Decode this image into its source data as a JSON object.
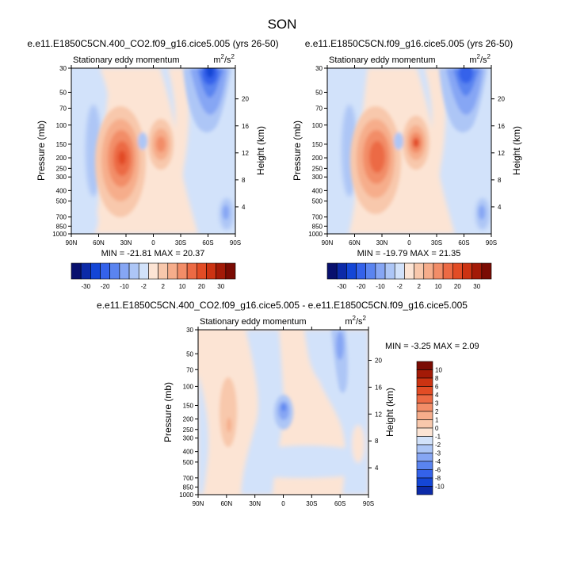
{
  "page_title": "SON",
  "colors": {
    "background": "#ffffff",
    "axis": "#000000",
    "palette_neg": [
      "#08106e",
      "#0c2aa8",
      "#1446d6",
      "#3462ea",
      "#5a84f0",
      "#86a6f4",
      "#adc6f6",
      "#d2e2fa"
    ],
    "palette_pos": [
      "#fce4d4",
      "#f8c8ac",
      "#f6ad8b",
      "#f28d68",
      "#ec6a44",
      "#e24c25",
      "#cc3312",
      "#a31a07",
      "#7a0b03"
    ]
  },
  "chart_data": [
    {
      "id": "panel1",
      "type": "contour",
      "title": "e.e11.E1850C5CN.400_CO2.f09_g16.cice5.005 (yrs 26-50)",
      "subtitle_left": "Stationary eddy momentum",
      "units": "m²/s²",
      "units_base": "m",
      "units_num": "2",
      "units_mid": "/s",
      "units_den": "2",
      "ylabel": "Pressure (mb)",
      "ylabel_right": "Height (km)",
      "x_ticks": [
        "90N",
        "60N",
        "30N",
        "0",
        "30S",
        "60S",
        "90S"
      ],
      "x_range": [
        90,
        -90
      ],
      "y_ticks_pressure": [
        "30",
        "50",
        "70",
        "100",
        "150",
        "200",
        "250",
        "300",
        "400",
        "500",
        "700",
        "850",
        "1000"
      ],
      "y_ticks_pressure_values": [
        30,
        50,
        70,
        100,
        150,
        200,
        250,
        300,
        400,
        500,
        700,
        850,
        1000
      ],
      "y_ticks_height": [
        "20",
        "16",
        "12",
        "8",
        "4"
      ],
      "y_ticks_height_values": [
        20,
        16,
        12,
        8,
        4
      ],
      "y_range": [
        1000,
        30
      ],
      "min": -21.81,
      "max": 20.37,
      "stats_label": "MIN = -21.81  MAX = 20.37",
      "features": [
        {
          "lat": 31,
          "p": 210,
          "value": 20.37
        },
        {
          "lat": -3,
          "p": 150,
          "value": 17
        },
        {
          "lat": 14,
          "p": 150,
          "value": -5
        },
        {
          "lat": 60,
          "p": 200,
          "value": -4
        },
        {
          "lat": -66,
          "p": 50,
          "value": -21.81
        },
        {
          "lat": -83,
          "p": 700,
          "value": -6
        }
      ]
    },
    {
      "id": "panel2",
      "type": "contour",
      "title": "e.e11.E1850C5CN.f09_g16.cice5.005 (yrs 26-50)",
      "subtitle_left": "Stationary eddy momentum",
      "units": "m²/s²",
      "units_base": "m",
      "units_num": "2",
      "units_mid": "/s",
      "units_den": "2",
      "ylabel": "Pressure (mb)",
      "ylabel_right": "Height (km)",
      "x_ticks": [
        "90N",
        "60N",
        "30N",
        "0",
        "30S",
        "60S",
        "90S"
      ],
      "x_range": [
        90,
        -90
      ],
      "y_ticks_pressure": [
        "30",
        "50",
        "70",
        "100",
        "150",
        "200",
        "250",
        "300",
        "400",
        "500",
        "700",
        "850",
        "1000"
      ],
      "y_ticks_pressure_values": [
        30,
        50,
        70,
        100,
        150,
        200,
        250,
        300,
        400,
        500,
        700,
        850,
        1000
      ],
      "y_ticks_height": [
        "20",
        "16",
        "12",
        "8",
        "4"
      ],
      "y_ticks_height_values": [
        20,
        16,
        12,
        8,
        4
      ],
      "y_range": [
        1000,
        30
      ],
      "min": -19.79,
      "max": 21.35,
      "stats_label": "MIN = -19.79  MAX = 21.35",
      "features": [
        {
          "lat": 28,
          "p": 200,
          "value": 19
        },
        {
          "lat": -2,
          "p": 150,
          "value": 21.35
        },
        {
          "lat": 14,
          "p": 150,
          "value": -5
        },
        {
          "lat": 60,
          "p": 200,
          "value": -4
        },
        {
          "lat": -64,
          "p": 50,
          "value": -19.79
        },
        {
          "lat": -83,
          "p": 700,
          "value": -6
        }
      ]
    },
    {
      "id": "panel3",
      "type": "contour",
      "title": "e.e11.E1850C5CN.400_CO2.f09_g16.cice5.005 - e.e11.E1850C5CN.f09_g16.cice5.005",
      "subtitle_left": "Stationary eddy momentum",
      "units": "m²/s²",
      "units_base": "m",
      "units_num": "2",
      "units_mid": "/s",
      "units_den": "2",
      "ylabel": "Pressure (mb)",
      "ylabel_right": "Height (km)",
      "x_ticks": [
        "90N",
        "60N",
        "30N",
        "0",
        "30S",
        "60S",
        "90S"
      ],
      "x_range": [
        90,
        -90
      ],
      "y_ticks_pressure": [
        "30",
        "50",
        "70",
        "100",
        "150",
        "200",
        "250",
        "300",
        "400",
        "500",
        "700",
        "850",
        "1000"
      ],
      "y_ticks_pressure_values": [
        30,
        50,
        70,
        100,
        150,
        200,
        250,
        300,
        400,
        500,
        700,
        850,
        1000
      ],
      "y_ticks_height": [
        "20",
        "16",
        "12",
        "8",
        "4"
      ],
      "y_ticks_height_values": [
        20,
        16,
        12,
        8,
        4
      ],
      "y_range": [
        1000,
        30
      ],
      "min": -3.25,
      "max": 2.09,
      "stats_label": "MIN = -3.25  MAX =  2.09",
      "features": [
        {
          "lat": -2,
          "p": 150,
          "value": -3.25
        },
        {
          "lat": 62,
          "p": 200,
          "value": 2.09
        },
        {
          "lat": -63,
          "p": 45,
          "value": -2
        }
      ]
    }
  ],
  "colorbars": [
    {
      "id": "cb1",
      "orientation": "horizontal",
      "labels": [
        "-30",
        "-20",
        "-10",
        "-2",
        "2",
        "10",
        "20",
        "30"
      ]
    },
    {
      "id": "cb2",
      "orientation": "horizontal",
      "labels": [
        "-30",
        "-20",
        "-10",
        "-2",
        "2",
        "10",
        "20",
        "30"
      ]
    },
    {
      "id": "cb3",
      "orientation": "vertical",
      "labels": [
        "10",
        "8",
        "6",
        "4",
        "3",
        "2",
        "1",
        "0",
        "-1",
        "-2",
        "-3",
        "-4",
        "-6",
        "-8",
        "-10"
      ]
    }
  ]
}
